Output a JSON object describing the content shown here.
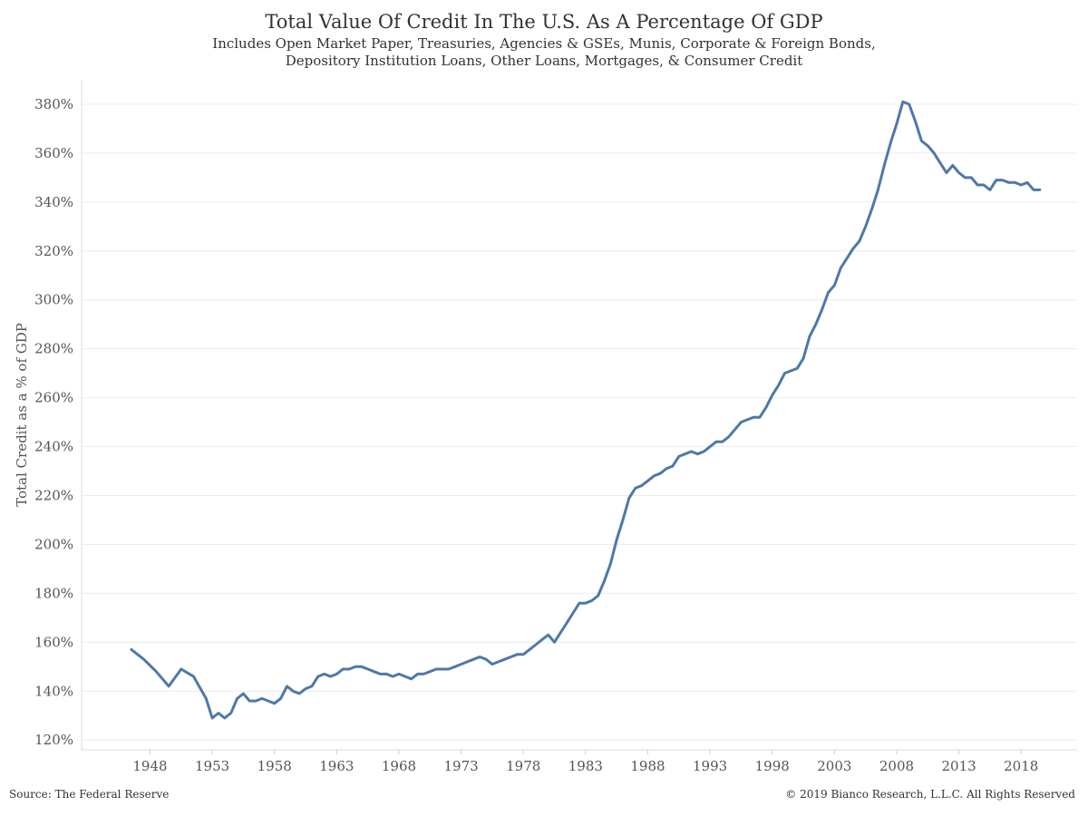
{
  "chart_data": {
    "type": "line",
    "title": "Total Value Of Credit In The U.S. As A Percentage Of GDP",
    "subtitle_lines": [
      "Includes Open Market Paper, Treasuries, Agencies & GSEs, Munis, Corporate & Foreign Bonds,",
      "Depository Institution Loans, Other Loans, Mortgages, & Consumer Credit"
    ],
    "ylabel": "Total Credit as a % of GDP",
    "xlabel": "",
    "ylim": [
      116,
      390
    ],
    "xlim": [
      1942.5,
      2022.5
    ],
    "y_ticks": [
      120,
      140,
      160,
      180,
      200,
      220,
      240,
      260,
      280,
      300,
      320,
      340,
      360,
      380
    ],
    "y_tick_suffix": "%",
    "x_ticks": [
      1948,
      1953,
      1958,
      1963,
      1968,
      1973,
      1978,
      1983,
      1988,
      1993,
      1998,
      2003,
      2008,
      2013,
      2018
    ],
    "grid": "horizontal",
    "color": "#4e79a7",
    "series": [
      {
        "x": [
          1946.5,
          1947.5,
          1948.5,
          1949.5,
          1950.5,
          1951.5,
          1952.5,
          1953.0,
          1953.5,
          1954.0,
          1954.5,
          1955.0,
          1955.5,
          1956.0,
          1956.5,
          1957.0,
          1957.5,
          1958.0,
          1958.5,
          1959.0,
          1959.5,
          1960.0,
          1960.5,
          1961.0,
          1961.5,
          1962.0,
          1962.5,
          1963.0,
          1963.5,
          1964.0,
          1964.5,
          1965.0,
          1965.5,
          1966.0,
          1966.5,
          1967.0,
          1967.5,
          1968.0,
          1968.5,
          1969.0,
          1969.5,
          1970.0,
          1970.5,
          1971.0,
          1971.5,
          1972.0,
          1972.5,
          1973.0,
          1973.5,
          1974.0,
          1974.5,
          1975.0,
          1975.5,
          1976.0,
          1976.5,
          1977.0,
          1977.5,
          1978.0,
          1978.5,
          1979.0,
          1979.5,
          1980.0,
          1980.5,
          1981.0,
          1981.5,
          1982.0,
          1982.5,
          1983.0,
          1983.5,
          1984.0,
          1984.5,
          1985.0,
          1985.5,
          1986.0,
          1986.5,
          1987.0,
          1987.5,
          1988.0,
          1988.5,
          1989.0,
          1989.5,
          1990.0,
          1990.5,
          1991.0,
          1991.5,
          1992.0,
          1992.5,
          1993.0,
          1993.5,
          1994.0,
          1994.5,
          1995.0,
          1995.5,
          1996.0,
          1996.5,
          1997.0,
          1997.5,
          1998.0,
          1998.5,
          1999.0,
          1999.5,
          2000.0,
          2000.5,
          2001.0,
          2001.5,
          2002.0,
          2002.5,
          2003.0,
          2003.5,
          2004.0,
          2004.5,
          2005.0,
          2005.5,
          2006.0,
          2006.5,
          2007.0,
          2007.5,
          2008.0,
          2008.5,
          2009.0,
          2009.5,
          2010.0,
          2010.5,
          2011.0,
          2011.5,
          2012.0,
          2012.5,
          2013.0,
          2013.5,
          2014.0,
          2014.5,
          2015.0,
          2015.5,
          2016.0,
          2016.5,
          2017.0,
          2017.5,
          2018.0,
          2018.5,
          2019.0,
          2019.5
        ],
        "values": [
          157,
          153,
          148,
          142,
          149,
          146,
          137,
          129,
          131,
          129,
          131,
          137,
          139,
          136,
          136,
          137,
          136,
          135,
          137,
          142,
          140,
          139,
          141,
          142,
          146,
          147,
          146,
          147,
          149,
          149,
          150,
          150,
          149,
          148,
          147,
          147,
          146,
          147,
          146,
          145,
          147,
          147,
          148,
          149,
          149,
          149,
          150,
          151,
          152,
          153,
          154,
          153,
          151,
          152,
          153,
          154,
          155,
          155,
          157,
          159,
          161,
          163,
          160,
          164,
          168,
          172,
          176,
          176,
          177,
          179,
          185,
          192,
          202,
          210,
          219,
          223,
          224,
          226,
          228,
          229,
          231,
          232,
          236,
          237,
          238,
          237,
          238,
          240,
          242,
          242,
          244,
          247,
          250,
          251,
          252,
          252,
          256,
          261,
          265,
          270,
          271,
          272,
          276,
          285,
          290,
          296,
          303,
          306,
          313,
          317,
          321,
          324,
          330,
          337,
          345,
          355,
          364,
          372,
          381,
          380,
          373,
          365,
          363,
          360,
          356,
          352,
          355,
          352,
          350,
          350,
          347,
          347,
          345,
          349,
          349,
          348,
          348,
          347,
          348,
          345,
          345
        ]
      }
    ],
    "source": "Source: The Federal Reserve",
    "copyright": "© 2019 Bianco Research, L.L.C. All Rights Reserved"
  }
}
